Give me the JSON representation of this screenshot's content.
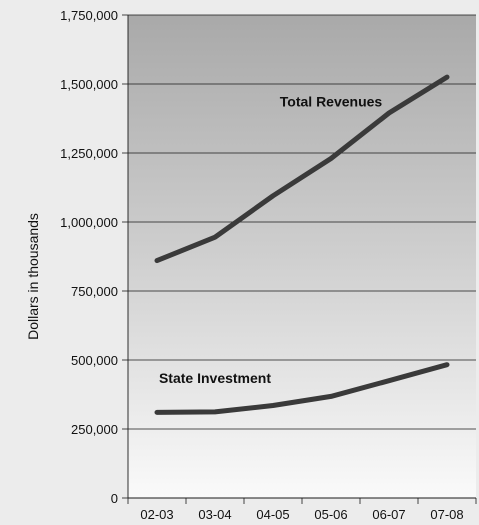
{
  "chart_data": {
    "type": "line",
    "title": "",
    "xlabel": "",
    "ylabel": "Dollars in thousands",
    "categories": [
      "02-03",
      "03-04",
      "04-05",
      "05-06",
      "06-07",
      "07-08"
    ],
    "ylim": [
      0,
      1750000
    ],
    "yticks": [
      0,
      250000,
      500000,
      750000,
      1000000,
      1250000,
      1500000,
      1750000
    ],
    "ytick_labels": [
      "0",
      "250,000",
      "500,000",
      "750,000",
      "1,000,000",
      "1,250,000",
      "1,500,000",
      "1,750,000"
    ],
    "grid": true,
    "legend": "none",
    "series": [
      {
        "name": "Total Revenues",
        "values": [
          860000,
          945000,
          1095000,
          1230000,
          1395000,
          1525000
        ],
        "color": "#3a3a3a"
      },
      {
        "name": "State Investment",
        "values": [
          310000,
          312000,
          335000,
          368000,
          425000,
          483000
        ],
        "color": "#3a3a3a"
      }
    ]
  }
}
